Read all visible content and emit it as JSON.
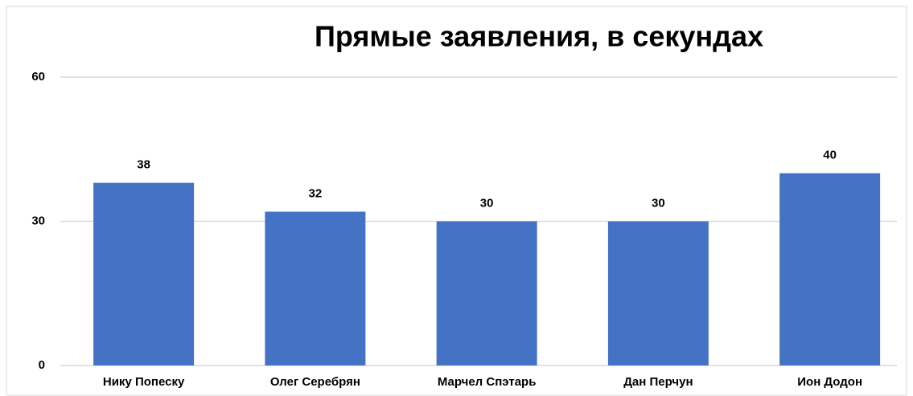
{
  "chart_data": {
    "type": "bar",
    "title": "Прямые заявления, в секундах",
    "categories": [
      "Нику Попеску",
      "Олег Серебрян",
      "Марчел Спэтарь",
      "Дан Перчун",
      "Ион Додон"
    ],
    "values": [
      38,
      32,
      30,
      30,
      40
    ],
    "color": "#4472c4",
    "ylim": [
      0,
      60
    ],
    "yticks": [
      0,
      30,
      60
    ],
    "grid": true,
    "data_labels": true
  }
}
